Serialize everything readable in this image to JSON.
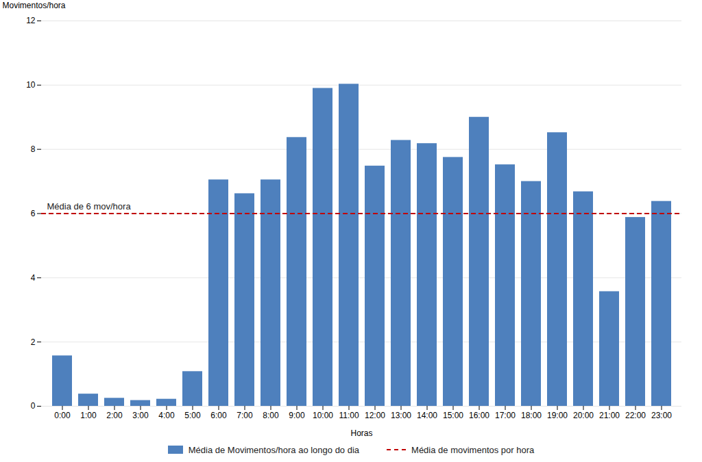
{
  "chart_data": {
    "type": "bar",
    "categories": [
      "0:00",
      "1:00",
      "2:00",
      "3:00",
      "4:00",
      "5:00",
      "6:00",
      "7:00",
      "8:00",
      "9:00",
      "10:00",
      "11:00",
      "12:00",
      "13:00",
      "14:00",
      "15:00",
      "16:00",
      "17:00",
      "18:00",
      "19:00",
      "20:00",
      "21:00",
      "22:00",
      "23:00"
    ],
    "values": [
      1.57,
      0.38,
      0.25,
      0.18,
      0.22,
      1.08,
      7.05,
      6.62,
      7.05,
      8.37,
      9.9,
      10.03,
      7.48,
      8.28,
      8.18,
      7.75,
      9.0,
      7.52,
      7.0,
      8.52,
      6.68,
      3.57,
      5.88,
      6.38
    ],
    "name": "Média de Movimentos/hora ao longo do dia",
    "color": "#4E80BD",
    "mean_line": {
      "value": 6.0,
      "name": "Média de movimentos por hora",
      "color": "#C00000",
      "line_style": "dashed",
      "annotation": "Média de 6 mov/hora"
    },
    "xlabel": "Horas",
    "ylabel": "Movimentos/hora",
    "ylim": [
      0,
      12
    ],
    "yticks": [
      0,
      2,
      4,
      6,
      8,
      10,
      12
    ],
    "grid": true,
    "legend": "bottom"
  }
}
